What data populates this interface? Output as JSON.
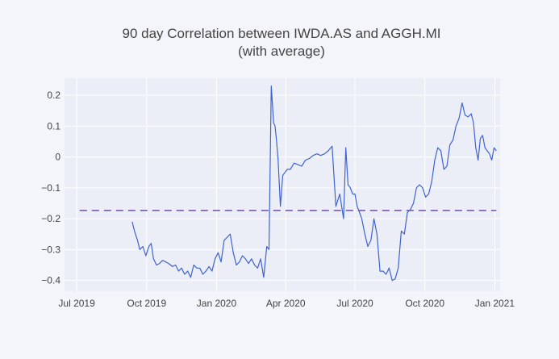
{
  "chart_data": {
    "type": "line",
    "title": "90 day Correlation between IWDA.AS and AGGH.MI",
    "subtitle": "(with average)",
    "xlabel": "",
    "ylabel": "",
    "x_range": [
      "2019-06-15",
      "2021-01-08"
    ],
    "y_range": [
      -0.435,
      0.255
    ],
    "grid": true,
    "x_ticks": [
      {
        "date": "2019-07-01",
        "label": "Jul 2019"
      },
      {
        "date": "2019-10-01",
        "label": "Oct 2019"
      },
      {
        "date": "2020-01-01",
        "label": "Jan 2020"
      },
      {
        "date": "2020-04-01",
        "label": "Apr 2020"
      },
      {
        "date": "2020-07-01",
        "label": "Jul 2020"
      },
      {
        "date": "2020-10-01",
        "label": "Oct 2020"
      },
      {
        "date": "2021-01-01",
        "label": "Jan 2021"
      }
    ],
    "y_ticks": [
      {
        "value": 0.2,
        "label": "0.2"
      },
      {
        "value": 0.1,
        "label": "0.1"
      },
      {
        "value": 0,
        "label": "0"
      },
      {
        "value": -0.1,
        "label": "−0.1"
      },
      {
        "value": -0.2,
        "label": "−0.2"
      },
      {
        "value": -0.3,
        "label": "−0.3"
      },
      {
        "value": -0.4,
        "label": "−0.4"
      }
    ],
    "series": [
      {
        "name": "correlation",
        "color": "#3f63cf",
        "style": "solid",
        "x": [
          "2019-09-12",
          "2019-09-15",
          "2019-09-19",
          "2019-09-22",
          "2019-09-26",
          "2019-09-30",
          "2019-10-04",
          "2019-10-07",
          "2019-10-10",
          "2019-10-14",
          "2019-10-18",
          "2019-10-22",
          "2019-10-26",
          "2019-10-30",
          "2019-11-04",
          "2019-11-08",
          "2019-11-12",
          "2019-11-16",
          "2019-11-20",
          "2019-11-24",
          "2019-11-28",
          "2019-12-02",
          "2019-12-06",
          "2019-12-10",
          "2019-12-14",
          "2019-12-18",
          "2019-12-22",
          "2019-12-26",
          "2019-12-30",
          "2020-01-03",
          "2020-01-07",
          "2020-01-11",
          "2020-01-15",
          "2020-01-19",
          "2020-01-23",
          "2020-01-27",
          "2020-01-31",
          "2020-02-04",
          "2020-02-08",
          "2020-02-12",
          "2020-02-16",
          "2020-02-20",
          "2020-02-24",
          "2020-02-28",
          "2020-03-03",
          "2020-03-07",
          "2020-03-10",
          "2020-03-13",
          "2020-03-16",
          "2020-03-18",
          "2020-03-20",
          "2020-03-22",
          "2020-03-25",
          "2020-03-28",
          "2020-03-31",
          "2020-04-03",
          "2020-04-07",
          "2020-04-12",
          "2020-04-17",
          "2020-04-22",
          "2020-04-27",
          "2020-05-02",
          "2020-05-07",
          "2020-05-12",
          "2020-05-17",
          "2020-05-22",
          "2020-05-27",
          "2020-06-01",
          "2020-06-06",
          "2020-06-11",
          "2020-06-16",
          "2020-06-19",
          "2020-06-22",
          "2020-06-25",
          "2020-06-28",
          "2020-07-01",
          "2020-07-04",
          "2020-07-07",
          "2020-07-10",
          "2020-07-14",
          "2020-07-18",
          "2020-07-22",
          "2020-07-26",
          "2020-07-30",
          "2020-08-03",
          "2020-08-07",
          "2020-08-11",
          "2020-08-15",
          "2020-08-19",
          "2020-08-23",
          "2020-08-27",
          "2020-08-31",
          "2020-09-04",
          "2020-09-08",
          "2020-09-12",
          "2020-09-16",
          "2020-09-20",
          "2020-09-24",
          "2020-09-28",
          "2020-10-02",
          "2020-10-06",
          "2020-10-10",
          "2020-10-14",
          "2020-10-18",
          "2020-10-22",
          "2020-10-26",
          "2020-10-30",
          "2020-11-03",
          "2020-11-07",
          "2020-11-11",
          "2020-11-15",
          "2020-11-19",
          "2020-11-23",
          "2020-11-27",
          "2020-12-01",
          "2020-12-04",
          "2020-12-07",
          "2020-12-10",
          "2020-12-13",
          "2020-12-16",
          "2020-12-19",
          "2020-12-22",
          "2020-12-25",
          "2020-12-28",
          "2020-12-31",
          "2021-01-03"
        ],
        "y": [
          -0.21,
          -0.24,
          -0.27,
          -0.3,
          -0.29,
          -0.32,
          -0.29,
          -0.28,
          -0.33,
          -0.35,
          -0.345,
          -0.335,
          -0.34,
          -0.345,
          -0.355,
          -0.35,
          -0.37,
          -0.36,
          -0.38,
          -0.37,
          -0.39,
          -0.35,
          -0.36,
          -0.36,
          -0.38,
          -0.37,
          -0.355,
          -0.37,
          -0.33,
          -0.31,
          -0.34,
          -0.27,
          -0.26,
          -0.25,
          -0.31,
          -0.35,
          -0.34,
          -0.32,
          -0.33,
          -0.345,
          -0.33,
          -0.35,
          -0.36,
          -0.33,
          -0.39,
          -0.29,
          -0.3,
          0.23,
          0.11,
          0.1,
          0.05,
          -0.01,
          -0.16,
          -0.06,
          -0.05,
          -0.04,
          -0.04,
          -0.02,
          -0.025,
          -0.03,
          -0.01,
          -0.005,
          0.005,
          0.01,
          0.005,
          0.01,
          0.02,
          0.035,
          -0.16,
          -0.12,
          -0.2,
          0.03,
          -0.09,
          -0.1,
          -0.12,
          -0.12,
          -0.16,
          -0.18,
          -0.2,
          -0.25,
          -0.29,
          -0.27,
          -0.2,
          -0.25,
          -0.37,
          -0.37,
          -0.38,
          -0.36,
          -0.4,
          -0.395,
          -0.36,
          -0.24,
          -0.25,
          -0.18,
          -0.17,
          -0.15,
          -0.1,
          -0.09,
          -0.1,
          -0.13,
          -0.12,
          -0.08,
          -0.01,
          0.03,
          0.02,
          -0.04,
          -0.03,
          0.04,
          0.055,
          0.1,
          0.125,
          0.175,
          0.135,
          0.13,
          0.14,
          0.11,
          0.03,
          -0.01,
          0.06,
          0.07,
          0.03,
          0.02,
          0.01,
          -0.01,
          0.03,
          0.02
        ]
      },
      {
        "name": "average",
        "color": "#7a5ea8",
        "style": "dashed",
        "x": [
          "2019-07-05",
          "2021-01-03"
        ],
        "y": [
          -0.173,
          -0.173
        ]
      }
    ]
  }
}
